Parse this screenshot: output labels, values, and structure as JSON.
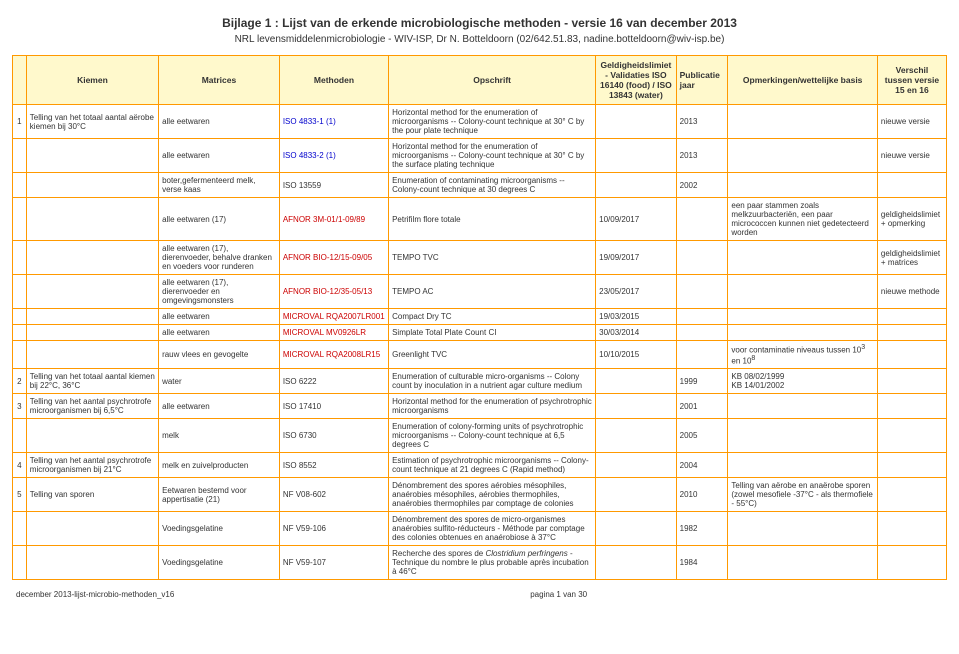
{
  "doc": {
    "title": "Bijlage 1 : Lijst van de erkende microbiologische methoden - versie 16 van december 2013",
    "subtitle": "NRL levensmiddelenmicrobiologie - WIV-ISP, Dr N. Botteldoorn (02/642.51.83, nadine.botteldoorn@wiv-isp.be)"
  },
  "headers": {
    "col0": "",
    "kiemen": "Kiemen",
    "matrices": "Matrices",
    "methoden": "Methoden",
    "opschrift": "Opschrift",
    "geld": "Geldigheidslimiet - Validaties ISO 16140 (food) / ISO 13843 (water)",
    "pub": "Publicatie jaar",
    "opm": "Opmerkingen/wettelijke basis",
    "ver": "Verschil tussen versie 15 en 16"
  },
  "rows": [
    {
      "num": "1",
      "kiemen": "Telling van het totaal aantal aërobe kiemen bij 30°C",
      "matrices": "alle eetwaren",
      "methoden": "ISO 4833-1 (1)",
      "methoden_class": "blue",
      "opschrift": "Horizontal method for the enumeration of microorganisms -- Colony-count technique at 30° C by the pour plate technique",
      "geld": "",
      "pub": "2013",
      "opm": "",
      "ver": "nieuwe versie"
    },
    {
      "num": "",
      "kiemen": "",
      "matrices": "alle eetwaren",
      "methoden": "ISO 4833-2 (1)",
      "methoden_class": "blue",
      "opschrift": "Horizontal method for the enumeration of microorganisms -- Colony-count technique at 30° C by the surface plating technique",
      "geld": "",
      "pub": "2013",
      "opm": "",
      "ver": "nieuwe versie"
    },
    {
      "num": "",
      "kiemen": "",
      "matrices": "boter,gefermenteerd melk, verse kaas",
      "methoden": "ISO 13559",
      "methoden_class": "",
      "opschrift": "Enumeration of contaminating microorganisms -- Colony-count technique at 30 degrees C",
      "geld": "",
      "pub": "2002",
      "opm": "",
      "ver": ""
    },
    {
      "num": "",
      "kiemen": "",
      "matrices": "alle eetwaren (17)",
      "methoden": "AFNOR 3M-01/1-09/89",
      "methoden_class": "red",
      "opschrift": "Petrifilm flore totale",
      "geld": "10/09/2017",
      "pub": "",
      "opm": "een paar stammen zoals melkzuurbacteriën, een paar micrococcen kunnen niet gedetecteerd worden",
      "ver": "geldigheidslimiet + opmerking"
    },
    {
      "num": "",
      "kiemen": "",
      "matrices": "alle eetwaren (17), dierenvoeder, behalve dranken en voeders voor runderen",
      "methoden": "AFNOR BIO-12/15-09/05",
      "methoden_class": "red",
      "opschrift": "TEMPO TVC",
      "geld": "19/09/2017",
      "pub": "",
      "opm": "",
      "ver": "geldigheidslimiet + matrices"
    },
    {
      "num": "",
      "kiemen": "",
      "matrices": "alle eetwaren (17), dierenvoeder en omgevingsmonsters",
      "methoden": "AFNOR BIO-12/35-05/13",
      "methoden_class": "red",
      "opschrift": "TEMPO AC",
      "geld": "23/05/2017",
      "pub": "",
      "opm": "",
      "ver": "nieuwe methode"
    },
    {
      "num": "",
      "kiemen": "",
      "matrices": "alle eetwaren",
      "methoden": "MICROVAL RQA2007LR001",
      "methoden_class": "red",
      "opschrift": "Compact Dry TC",
      "geld": "19/03/2015",
      "pub": "",
      "opm": "",
      "ver": ""
    },
    {
      "num": "",
      "kiemen": "",
      "matrices": "alle eetwaren",
      "methoden": "MICROVAL MV0926LR",
      "methoden_class": "red",
      "opschrift": "Simplate Total Plate Count CI",
      "geld": "30/03/2014",
      "pub": "",
      "opm": "",
      "ver": ""
    },
    {
      "num": "",
      "kiemen": "",
      "matrices": "rauw vlees en gevogelte",
      "methoden": "MICROVAL RQA2008LR15",
      "methoden_class": "red",
      "opschrift": "Greenlight TVC",
      "geld": "10/10/2015",
      "pub": "",
      "opm_html": "voor contaminatie niveaus tussen 10<sup>3</sup> en 10<sup>8</sup>",
      "ver": ""
    },
    {
      "num": "2",
      "kiemen": "Telling van het totaal aantal kiemen bij 22°C, 36°C",
      "matrices": "water",
      "methoden": "ISO 6222",
      "methoden_class": "",
      "opschrift": "Enumeration of culturable micro-organisms -- Colony count by inoculation in a nutrient agar culture medium",
      "geld": "",
      "pub": "1999",
      "opm": "KB 08/02/1999\nKB 14/01/2002",
      "ver": ""
    },
    {
      "num": "3",
      "kiemen": "Telling van het aantal psychrotrofe microorganismen bij 6,5°C",
      "matrices": "alle eetwaren",
      "methoden": "ISO 17410",
      "methoden_class": "",
      "opschrift": "Horizontal method for the enumeration of psychrotrophic microorganisms",
      "geld": "",
      "pub": "2001",
      "opm": "",
      "ver": ""
    },
    {
      "num": "",
      "kiemen": "",
      "matrices": "melk",
      "methoden": "ISO 6730",
      "methoden_class": "",
      "opschrift": "Enumeration of colony-forming units of psychrotrophic microorganisms -- Colony-count technique at 6,5 degrees C",
      "geld": "",
      "pub": "2005",
      "opm": "",
      "ver": ""
    },
    {
      "num": "4",
      "kiemen": "Telling van het aantal psychrotrofe microorganismen bij 21°C",
      "matrices": "melk en zuivelproducten",
      "methoden": "ISO 8552",
      "methoden_class": "",
      "opschrift": "Estimation of psychrotrophic microorganisms -- Colony-count technique at 21 degrees C (Rapid method)",
      "geld": "",
      "pub": "2004",
      "opm": "",
      "ver": ""
    },
    {
      "num": "5",
      "kiemen": "Telling van sporen",
      "matrices": "Eetwaren bestemd voor appertisatie (21)",
      "methoden": "NF V08-602",
      "methoden_class": "",
      "opschrift": "Dénombrement des spores aérobies mésophiles, anaérobies mésophiles, aérobies thermophiles, anaérobies thermophiles par comptage de colonies",
      "geld": "",
      "pub": "2010",
      "opm": "Telling van aërobe en anaërobe sporen (zowel mesofiele -37°C - als thermofiele - 55°C)",
      "ver": ""
    },
    {
      "num": "",
      "kiemen": "",
      "matrices": "Voedingsgelatine",
      "methoden": "NF V59-106",
      "methoden_class": "",
      "opschrift": "Dénombrement des spores de micro-organismes anaérobies sulfito-réducteurs - Méthode par comptage des colonies obtenues en anaérobiose à 37°C",
      "geld": "",
      "pub": "1982",
      "opm": "",
      "ver": ""
    },
    {
      "num": "",
      "kiemen": "",
      "matrices": "Voedingsgelatine",
      "methoden": "NF V59-107",
      "methoden_class": "",
      "opschrift_html": "Recherche des spores de <i>Clostridium perfringens</i> - Technique du nombre le plus probable après incubation à 46°C",
      "geld": "",
      "pub": "1984",
      "opm": "",
      "ver": ""
    }
  ],
  "footer": {
    "left": "december 2013-lijst-microbio-methoden_v16",
    "center": "pagina 1 van 30",
    "right": ""
  }
}
